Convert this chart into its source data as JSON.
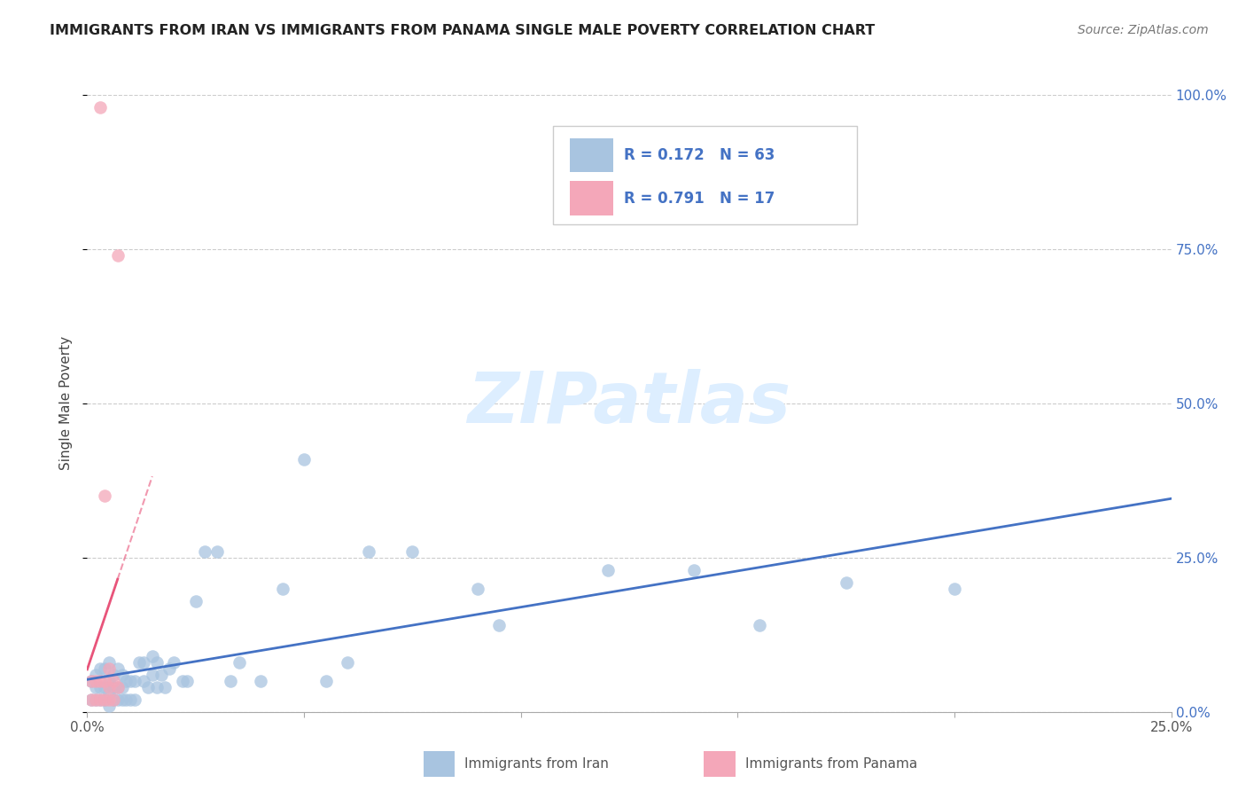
{
  "title": "IMMIGRANTS FROM IRAN VS IMMIGRANTS FROM PANAMA SINGLE MALE POVERTY CORRELATION CHART",
  "source": "Source: ZipAtlas.com",
  "legend_iran_label": "Immigrants from Iran",
  "legend_panama_label": "Immigrants from Panama",
  "ylabel_label": "Single Male Poverty",
  "xlim": [
    0.0,
    0.25
  ],
  "ylim": [
    0.0,
    1.0
  ],
  "xtick_labels": [
    "0.0%",
    "",
    "",
    "",
    "",
    "25.0%"
  ],
  "xtick_vals": [
    0.0,
    0.05,
    0.1,
    0.15,
    0.2,
    0.25
  ],
  "ytick_labels": [
    "0.0%",
    "25.0%",
    "50.0%",
    "75.0%",
    "100.0%"
  ],
  "ytick_vals": [
    0.0,
    0.25,
    0.5,
    0.75,
    1.0
  ],
  "iran_R": 0.172,
  "iran_N": 63,
  "panama_R": 0.791,
  "panama_N": 17,
  "iran_color": "#a8c4e0",
  "panama_color": "#f4a7b9",
  "iran_line_color": "#4472c4",
  "panama_line_color": "#e8547a",
  "legend_text_color": "#4472c4",
  "watermark_color": "#ddeeff",
  "background_color": "#ffffff",
  "grid_color": "#cccccc",
  "iran_scatter_x": [
    0.001,
    0.001,
    0.002,
    0.002,
    0.002,
    0.003,
    0.003,
    0.003,
    0.004,
    0.004,
    0.004,
    0.005,
    0.005,
    0.005,
    0.005,
    0.006,
    0.006,
    0.006,
    0.007,
    0.007,
    0.007,
    0.008,
    0.008,
    0.008,
    0.009,
    0.009,
    0.01,
    0.01,
    0.011,
    0.011,
    0.012,
    0.013,
    0.013,
    0.014,
    0.015,
    0.015,
    0.016,
    0.016,
    0.017,
    0.018,
    0.019,
    0.02,
    0.022,
    0.023,
    0.025,
    0.027,
    0.03,
    0.033,
    0.035,
    0.04,
    0.045,
    0.05,
    0.055,
    0.06,
    0.065,
    0.075,
    0.09,
    0.095,
    0.12,
    0.14,
    0.155,
    0.175,
    0.2
  ],
  "iran_scatter_y": [
    0.02,
    0.05,
    0.02,
    0.04,
    0.06,
    0.02,
    0.04,
    0.07,
    0.02,
    0.04,
    0.07,
    0.01,
    0.03,
    0.05,
    0.08,
    0.02,
    0.04,
    0.06,
    0.02,
    0.04,
    0.07,
    0.02,
    0.04,
    0.06,
    0.02,
    0.05,
    0.02,
    0.05,
    0.02,
    0.05,
    0.08,
    0.05,
    0.08,
    0.04,
    0.06,
    0.09,
    0.04,
    0.08,
    0.06,
    0.04,
    0.07,
    0.08,
    0.05,
    0.05,
    0.18,
    0.26,
    0.26,
    0.05,
    0.08,
    0.05,
    0.2,
    0.41,
    0.05,
    0.08,
    0.26,
    0.26,
    0.2,
    0.14,
    0.23,
    0.23,
    0.14,
    0.21,
    0.2
  ],
  "panama_scatter_x": [
    0.001,
    0.001,
    0.002,
    0.002,
    0.003,
    0.003,
    0.003,
    0.004,
    0.004,
    0.004,
    0.005,
    0.005,
    0.005,
    0.006,
    0.006,
    0.007,
    0.007
  ],
  "panama_scatter_y": [
    0.02,
    0.05,
    0.02,
    0.05,
    0.02,
    0.05,
    0.98,
    0.02,
    0.05,
    0.35,
    0.02,
    0.04,
    0.07,
    0.02,
    0.05,
    0.04,
    0.74
  ]
}
